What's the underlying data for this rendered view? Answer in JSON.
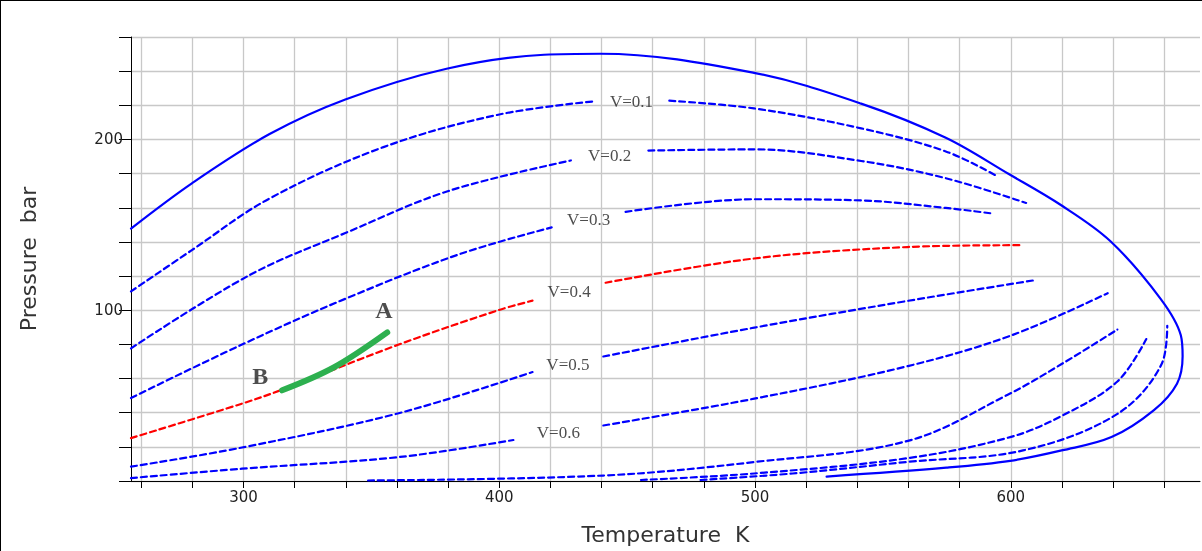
{
  "chart_data": {
    "type": "line",
    "xlabel": "Temperature  K",
    "ylabel": "Pressure  bar",
    "xlim": [
      256,
      674
    ],
    "ylim": [
      0,
      260
    ],
    "xticks": [
      {
        "value": 260,
        "label": null
      },
      {
        "value": 280,
        "label": null
      },
      300,
      {
        "value": 320,
        "label": null
      },
      {
        "value": 340,
        "label": null
      },
      {
        "value": 360,
        "label": null
      },
      {
        "value": 380,
        "label": null
      },
      400,
      {
        "value": 420,
        "label": null
      },
      {
        "value": 440,
        "label": null
      },
      {
        "value": 460,
        "label": null
      },
      {
        "value": 480,
        "label": null
      },
      500,
      {
        "value": 520,
        "label": null
      },
      {
        "value": 540,
        "label": null
      },
      {
        "value": 560,
        "label": null
      },
      {
        "value": 580,
        "label": null
      },
      600,
      {
        "value": 620,
        "label": null
      },
      {
        "value": 640,
        "label": null
      },
      {
        "value": 660,
        "label": null
      }
    ],
    "yticks": [
      {
        "value": 0,
        "label": null
      },
      {
        "value": 20,
        "label": null
      },
      {
        "value": 40,
        "label": null
      },
      {
        "value": 60,
        "label": null
      },
      {
        "value": 80,
        "label": null
      },
      100,
      {
        "value": 120,
        "label": null
      },
      {
        "value": 140,
        "label": null
      },
      {
        "value": 160,
        "label": null
      },
      {
        "value": 180,
        "label": null
      },
      200,
      {
        "value": 220,
        "label": null
      },
      {
        "value": 240,
        "label": null
      },
      {
        "value": 260,
        "label": null
      }
    ],
    "grid": true,
    "marker": "none",
    "series": [
      {
        "color": "#0000ff",
        "line_style": "solid",
        "x": [
          256,
          279.8,
          310,
          339.8,
          379.4,
          417.5,
          439.6,
          499.6,
          541.5,
          574.6,
          599.4,
          619.6,
          639,
          658.6,
          666.5,
          667.2,
          665,
          656,
          639.4,
          619.9,
          599.8,
          574.8,
          528
        ],
        "values": [
          147.8,
          174.3,
          203,
          223.4,
          241.4,
          249.6,
          250.2,
          239,
          221,
          201,
          179.6,
          161.6,
          140.4,
          106.7,
          85.3,
          73,
          57,
          41.5,
          25.7,
          17.9,
          11.8,
          7.8,
          2.6
        ]
      },
      {
        "name": "V=0.1",
        "color": "#0000ff",
        "line_style": "dashed",
        "x": [
          256,
          279.8,
          310,
          354.7,
          399.6,
          436.9,
          451,
          466.5,
          499.6,
          541.5,
          574.6,
          594.8
        ],
        "values": [
          111,
          135.2,
          165.3,
          195.5,
          214.5,
          222.3,
          null,
          222.7,
          218.2,
          206.5,
          193,
          178.4
        ]
      },
      {
        "name": "V=0.2",
        "color": "#0000ff",
        "line_style": "dashed",
        "x": [
          256,
          302.4,
          339.8,
          380.1,
          428,
          441,
          458.3,
          499.6,
          541.5,
          574.6,
          606
        ],
        "values": [
          77.7,
          120.6,
          145.2,
          169.8,
          187.7,
          null,
          193.5,
          194.2,
          187.4,
          177.3,
          162.8
        ]
      },
      {
        "name": "V=0.3",
        "color": "#0000ff",
        "line_style": "dashed",
        "x": [
          256,
          299.4,
          339.8,
          384.6,
          420.5,
          438,
          449.4,
          499.6,
          541.5,
          574.6,
          592.5
        ],
        "values": [
          48.6,
          79.9,
          106.7,
          132.9,
          148.5,
          null,
          157.6,
          165,
          164.3,
          159.9,
          156.7
        ]
      },
      {
        "name": "V=0.4",
        "color": "#ff0000",
        "line_style": "dashed",
        "x": [
          256,
          299.4,
          314.4,
          360.7,
          399.6,
          413,
          426,
          441.6,
          499.6,
          559.5,
          604.4
        ],
        "values": [
          25.1,
          45.3,
          53.1,
          79.9,
          100,
          105.6,
          null,
          116.1,
          130.3,
          137,
          138.1
        ]
      },
      {
        "name": "V=0.5",
        "color": "#0000ff",
        "line_style": "dashed",
        "x": [
          256,
          299.4,
          360.7,
          413,
          426,
          440.7,
          499.7,
          559.8,
          608.6
        ],
        "values": [
          8.4,
          19.6,
          39.7,
          63.8,
          null,
          72.9,
          89.8,
          105.5,
          117.4
        ]
      },
      {
        "name": "V=0.6",
        "color": "#0000ff",
        "line_style": "dashed",
        "x": [
          256,
          299.4,
          360.7,
          405.5,
          424,
          440.7,
          499.7,
          559.8,
          600.3,
          637.9
        ],
        "values": [
          1.7,
          7.2,
          14,
          24,
          null,
          32.5,
          48.2,
          67.3,
          85.3,
          110
        ]
      },
      {
        "color": "#0000ff",
        "line_style": "dashed",
        "x": [
          348.7,
          440.7,
          499.7,
          559.8,
          598.8,
          619.9,
          641.7
        ],
        "values": [
          0.3,
          3.2,
          11.1,
          23.5,
          50.5,
          68.5,
          88.7
        ]
      },
      {
        "color": "#0000ff",
        "line_style": "dashed",
        "x": [
          455.4,
          499.7,
          559.8,
          599.8,
          619.9,
          641.7,
          653
        ],
        "values": [
          0.6,
          4.4,
          13.4,
          25.7,
          38.1,
          58.3,
          83.1
        ]
      },
      {
        "color": "#0000ff",
        "line_style": "dashed",
        "x": [
          478.7,
          514.7,
          559.8,
          604.8,
          641.7,
          659,
          661.2
        ],
        "values": [
          0.6,
          4.4,
          11.2,
          17.9,
          39.3,
          68.5,
          90.9
        ]
      },
      {
        "color": "#2db04f",
        "line_style": "solid",
        "x": [
          315.1,
          335.3,
          356.2
        ],
        "values": [
          53.1,
          66.5,
          87
        ]
      }
    ],
    "annotations": [
      {
        "text": "A",
        "x": 356.2,
        "y": 87
      },
      {
        "text": "B",
        "x": 315.1,
        "y": 53.1
      }
    ]
  }
}
